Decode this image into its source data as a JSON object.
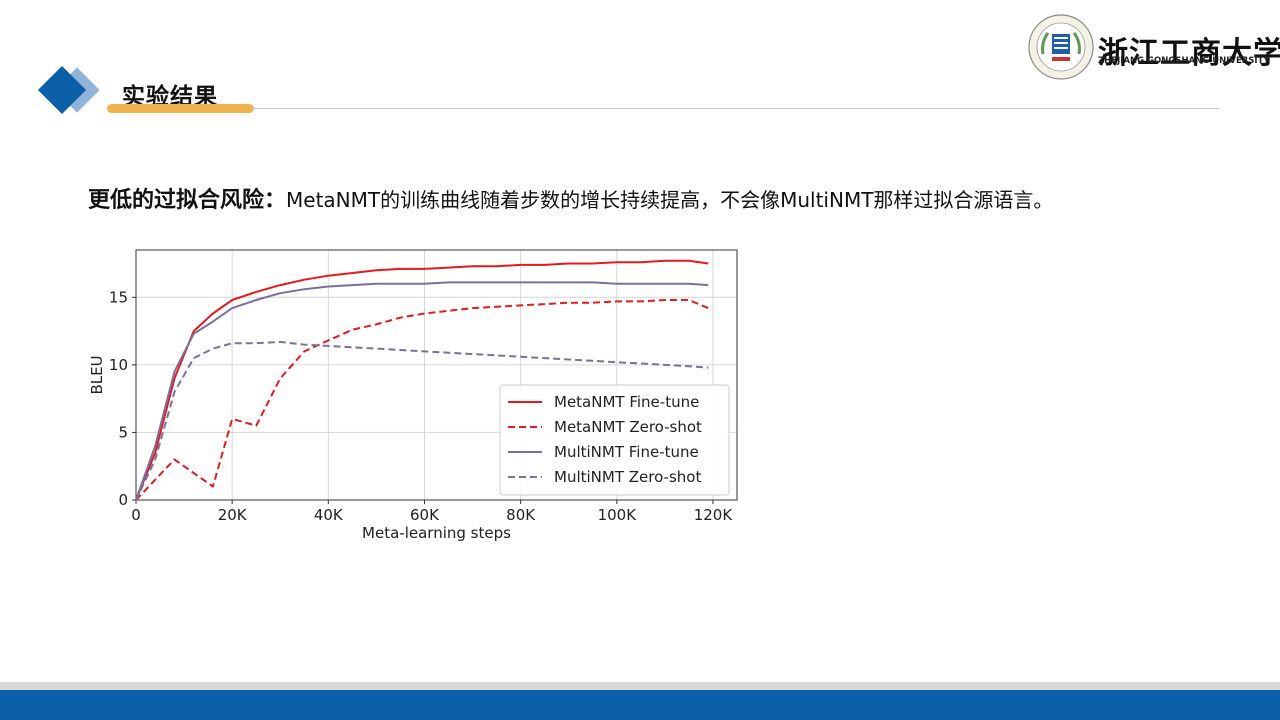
{
  "header": {
    "section_title": "实验结果",
    "logo_name_cn": "浙江工商大学",
    "logo_name_en": "ZHEJIANG GONGSHANG UNIVERSITY"
  },
  "headline": {
    "lead": "更低的过拟合风险：",
    "text": "MetaNMT的训练曲线随着步数的增长持续提高，不会像MultiNMT那样过拟合源语言。"
  },
  "colors": {
    "accent_blue": "#0b5ea8",
    "accent_orange": "#f1b44c",
    "meta_red": "#e41a1c",
    "multi_purple": "#7c6fa0"
  },
  "chart_data": {
    "type": "line",
    "xlabel": "Meta-learning steps",
    "ylabel": "BLEU",
    "xlim": [
      0,
      125000
    ],
    "ylim": [
      0,
      18.5
    ],
    "xticks": [
      0,
      20000,
      40000,
      60000,
      80000,
      100000,
      120000
    ],
    "xtick_labels": [
      "0",
      "20K",
      "40K",
      "60K",
      "80K",
      "100K",
      "120K"
    ],
    "yticks": [
      0,
      5,
      10,
      15
    ],
    "ytick_labels": [
      "0",
      "5",
      "10",
      "15"
    ],
    "grid": true,
    "legend_position": "lower-right",
    "x": [
      0,
      4000,
      8000,
      12000,
      16000,
      20000,
      25000,
      30000,
      35000,
      40000,
      45000,
      50000,
      55000,
      60000,
      65000,
      70000,
      75000,
      80000,
      85000,
      90000,
      95000,
      100000,
      105000,
      110000,
      115000,
      119000
    ],
    "series": [
      {
        "name": "MetaNMT Fine-tune",
        "style": "solid",
        "color": "#e41a1c",
        "values": [
          0,
          3.5,
          9.0,
          12.5,
          13.8,
          14.8,
          15.4,
          15.9,
          16.3,
          16.6,
          16.8,
          17.0,
          17.1,
          17.1,
          17.2,
          17.3,
          17.3,
          17.4,
          17.4,
          17.5,
          17.5,
          17.6,
          17.6,
          17.7,
          17.7,
          17.5
        ]
      },
      {
        "name": "MetaNMT Zero-shot",
        "style": "dashed",
        "color": "#e41a1c",
        "values": [
          0,
          1.5,
          3.0,
          2.0,
          1.0,
          6.0,
          5.5,
          9.0,
          11.0,
          11.8,
          12.6,
          13.0,
          13.5,
          13.8,
          14.0,
          14.2,
          14.3,
          14.4,
          14.5,
          14.6,
          14.6,
          14.7,
          14.7,
          14.8,
          14.8,
          14.2
        ]
      },
      {
        "name": "MultiNMT Fine-tune",
        "style": "solid",
        "color": "#7c6fa0",
        "values": [
          0,
          4.0,
          9.5,
          12.3,
          13.2,
          14.2,
          14.8,
          15.3,
          15.6,
          15.8,
          15.9,
          16.0,
          16.0,
          16.0,
          16.1,
          16.1,
          16.1,
          16.1,
          16.1,
          16.1,
          16.1,
          16.0,
          16.0,
          16.0,
          16.0,
          15.9
        ]
      },
      {
        "name": "MultiNMT Zero-shot",
        "style": "dashed",
        "color": "#7c6fa0",
        "values": [
          0,
          3.0,
          8.0,
          10.5,
          11.2,
          11.6,
          11.6,
          11.7,
          11.5,
          11.4,
          11.3,
          11.2,
          11.1,
          11.0,
          10.9,
          10.8,
          10.7,
          10.6,
          10.5,
          10.4,
          10.3,
          10.2,
          10.1,
          10.0,
          9.9,
          9.8
        ]
      }
    ]
  }
}
